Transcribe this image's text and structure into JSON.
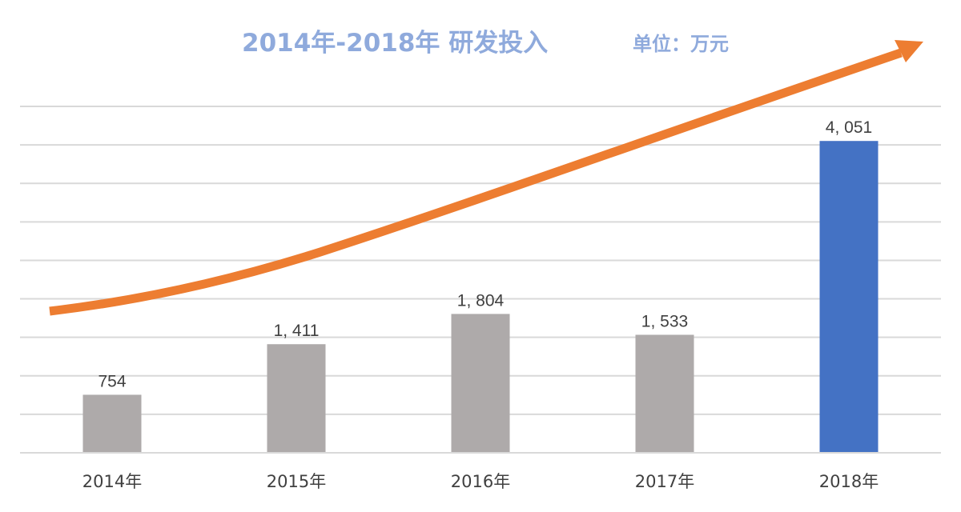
{
  "chart_data": {
    "type": "bar",
    "title": "2014年-2018年  研发投入",
    "unit_label": "单位：万元",
    "categories": [
      "2014年",
      "2015年",
      "2016年",
      "2017年",
      "2018年"
    ],
    "values": [
      754,
      1411,
      1804,
      1533,
      4051
    ],
    "data_labels": [
      "754",
      "1, 411",
      "1, 804",
      "1, 533",
      "4, 051"
    ],
    "xlabel": "",
    "ylabel": "",
    "ylim": [
      0,
      4500
    ],
    "grid_step": 500,
    "grid": true,
    "y_tick_labels_visible": false,
    "colors": {
      "bar": "#AEAAAA",
      "highlight_bar": "#4472C4",
      "title": "#8FAADC",
      "trend_arrow": "#ED7D31",
      "grid": "#D9D9D9"
    },
    "highlight_index": 4,
    "annotation": "trend-arrow-up"
  }
}
